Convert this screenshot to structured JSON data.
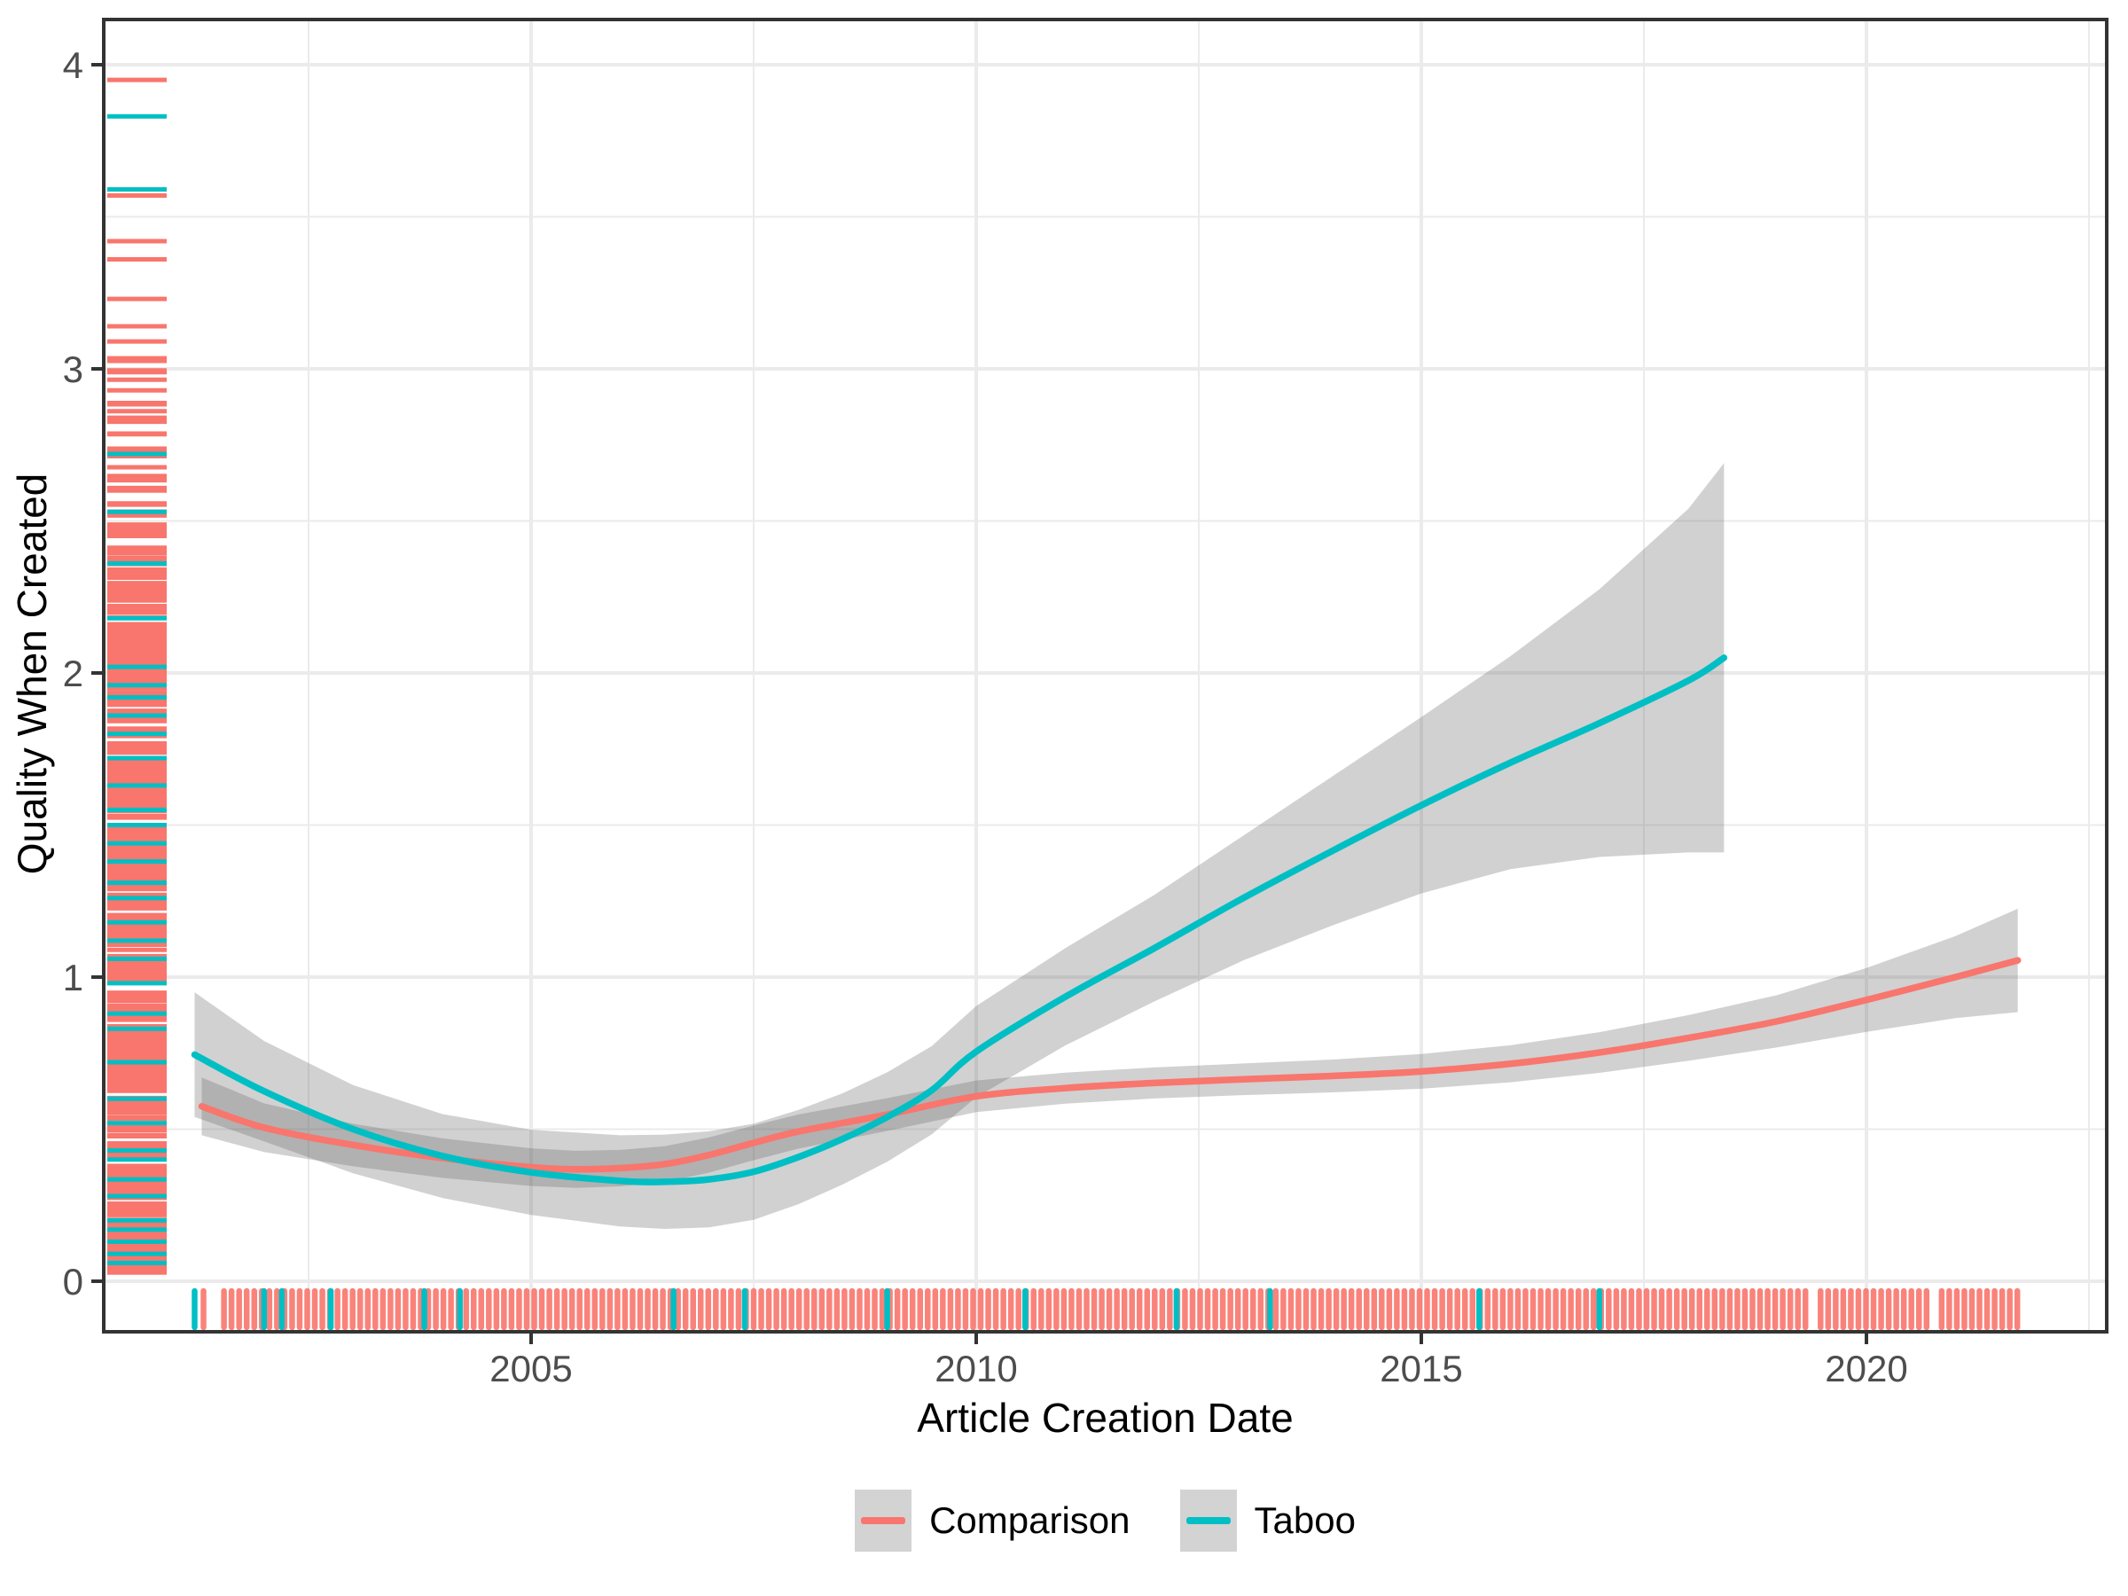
{
  "chart_data": {
    "type": "line",
    "title": "",
    "xlabel": "Article Creation Date",
    "ylabel": "Quality When Created",
    "x_ticks": [
      2005,
      2010,
      2015,
      2020
    ],
    "x_tick_labels": [
      "2005",
      "2010",
      "2015",
      "2020"
    ],
    "x_minor_ticks": [
      2002.5,
      2007.5,
      2012.5,
      2017.5,
      2022.5
    ],
    "y_ticks": [
      0,
      1,
      2,
      3,
      4
    ],
    "y_tick_labels": [
      "0",
      "1",
      "2",
      "3",
      "4"
    ],
    "y_minor_ticks": [
      0.5,
      1.5,
      2.5,
      3.5
    ],
    "xlim": [
      2000.2,
      2022.7
    ],
    "ylim": [
      -0.17,
      4.15
    ],
    "grid": true,
    "legend_position": "bottom",
    "panel_border_color": "#333333",
    "gridline_color": "#EBEBEB",
    "tick_label_color": "#4D4D4D",
    "band_fill": "#666666",
    "band_opacity": 0.3,
    "series": [
      {
        "name": "Comparison",
        "color": "#F8766D",
        "points": [
          [
            2001.3,
            0.575,
            0.095
          ],
          [
            2002,
            0.505,
            0.08
          ],
          [
            2003,
            0.448,
            0.07
          ],
          [
            2004,
            0.405,
            0.065
          ],
          [
            2005,
            0.375,
            0.062
          ],
          [
            2005.5,
            0.368,
            0.061
          ],
          [
            2006,
            0.372,
            0.06
          ],
          [
            2006.5,
            0.385,
            0.059
          ],
          [
            2007,
            0.415,
            0.058
          ],
          [
            2007.5,
            0.455,
            0.057
          ],
          [
            2008,
            0.492,
            0.056
          ],
          [
            2009,
            0.548,
            0.054
          ],
          [
            2010,
            0.608,
            0.052
          ],
          [
            2011,
            0.635,
            0.051
          ],
          [
            2012,
            0.652,
            0.051
          ],
          [
            2013,
            0.664,
            0.052
          ],
          [
            2014,
            0.675,
            0.054
          ],
          [
            2015,
            0.69,
            0.057
          ],
          [
            2016,
            0.715,
            0.061
          ],
          [
            2017,
            0.752,
            0.067
          ],
          [
            2018,
            0.8,
            0.075
          ],
          [
            2019,
            0.855,
            0.086
          ],
          [
            2020,
            0.925,
            0.105
          ],
          [
            2021,
            1.0,
            0.135
          ],
          [
            2021.7,
            1.055,
            0.17
          ]
        ]
      },
      {
        "name": "Taboo",
        "color": "#00BFC4",
        "points": [
          [
            2001.22,
            0.745,
            0.205
          ],
          [
            2002,
            0.625,
            0.165
          ],
          [
            2003,
            0.5,
            0.145
          ],
          [
            2004,
            0.412,
            0.138
          ],
          [
            2005,
            0.358,
            0.14
          ],
          [
            2006,
            0.33,
            0.15
          ],
          [
            2006.5,
            0.327,
            0.155
          ],
          [
            2007,
            0.335,
            0.158
          ],
          [
            2007.5,
            0.36,
            0.158
          ],
          [
            2008,
            0.408,
            0.155
          ],
          [
            2008.5,
            0.468,
            0.15
          ],
          [
            2009,
            0.54,
            0.147
          ],
          [
            2009.5,
            0.628,
            0.145
          ],
          [
            2010,
            0.755,
            0.15
          ],
          [
            2011,
            0.935,
            0.16
          ],
          [
            2012,
            1.095,
            0.175
          ],
          [
            2013,
            1.26,
            0.205
          ],
          [
            2014,
            1.415,
            0.245
          ],
          [
            2015,
            1.565,
            0.29
          ],
          [
            2016,
            1.705,
            0.35
          ],
          [
            2017,
            1.835,
            0.44
          ],
          [
            2018,
            1.975,
            0.565
          ],
          [
            2018.4,
            2.05,
            0.64
          ]
        ]
      }
    ],
    "rugs": {
      "bottom": {
        "taboo_years": [
          2001.22,
          2002.0,
          2002.2,
          2002.75,
          2003.8,
          2004.2,
          2006.6,
          2007.4,
          2009.0,
          2010.55,
          2012.25,
          2013.3,
          2015.65,
          2017.0
        ],
        "comparison_first": 2001.32,
        "comparison_dense": {
          "start": 2001.55,
          "end": 2021.7,
          "step": 0.085
        },
        "comparison_gaps": [
          [
            2019.32,
            2019.42
          ],
          [
            2020.68,
            2020.84
          ]
        ]
      },
      "left": {
        "taboo_values": [
          3.83,
          3.59,
          2.72,
          2.53,
          2.36,
          2.18,
          2.02,
          1.96,
          1.92,
          1.86,
          1.8,
          1.72,
          1.63,
          1.55,
          1.5,
          1.44,
          1.38,
          1.31,
          1.26,
          1.18,
          1.12,
          1.06,
          0.98,
          0.88,
          0.83,
          0.72,
          0.6,
          0.52,
          0.43,
          0.4,
          0.335,
          0.28,
          0.2,
          0.17,
          0.13,
          0.09,
          0.06
        ],
        "comparison_sparse": [
          3.95,
          3.57,
          3.42,
          3.36,
          3.23,
          3.14,
          3.09
        ],
        "comparison_dense": {
          "min": 0.02,
          "max": 2.35,
          "count": 380
        },
        "comparison_mid": {
          "min": 2.35,
          "max": 3.05,
          "count": 45
        }
      }
    }
  },
  "legend": {
    "key_background": "#D3D3D3",
    "items": [
      {
        "label": "Comparison"
      },
      {
        "label": "Taboo"
      }
    ]
  }
}
